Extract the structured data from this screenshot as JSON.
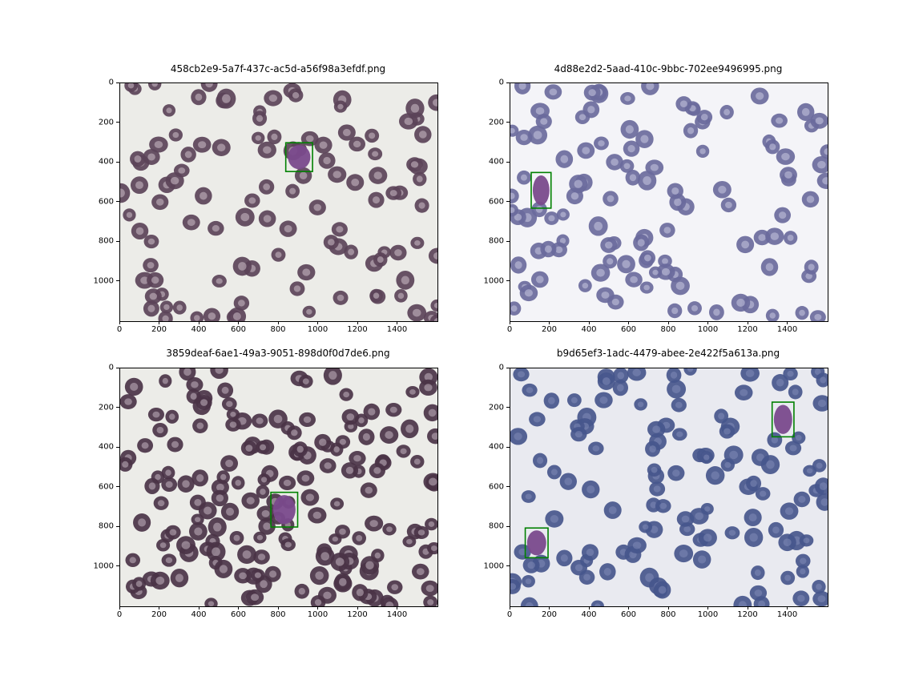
{
  "figure": {
    "panels": [
      {
        "title": "458cb2e9-5a7f-437c-ac5d-a56f98a3efdf.png",
        "image_desc": "thin blood smear, pale grey background, dark purple red cells",
        "palette": {
          "bg": "#ecece8",
          "cell": "#5b4358",
          "cell_center": "#cdbfc8"
        },
        "boxes": [
          {
            "x0": 835,
            "y0": 300,
            "x1": 970,
            "y1": 445,
            "color": "#008000"
          }
        ],
        "xticks": [
          "0",
          "200",
          "400",
          "600",
          "800",
          "1000",
          "1200",
          "1400"
        ],
        "yticks": [
          "0",
          "200",
          "400",
          "600",
          "800",
          "1000"
        ]
      },
      {
        "title": "4d88e2d2-5aad-410c-9bbc-702ee9496995.png",
        "image_desc": "thin blood smear, white background, blue-violet red cells",
        "palette": {
          "bg": "#f4f4f8",
          "cell": "#6a6a9c",
          "cell_center": "#c9c9e0"
        },
        "boxes": [
          {
            "x0": 105,
            "y0": 450,
            "x1": 205,
            "y1": 630,
            "color": "#008000"
          }
        ],
        "xticks": [
          "0",
          "200",
          "400",
          "600",
          "800",
          "1000",
          "1200",
          "1400"
        ],
        "yticks": [
          "0",
          "200",
          "400",
          "600",
          "800",
          "1000"
        ]
      },
      {
        "title": "3859deaf-6ae1-49a3-9051-898d0f0d7de6.png",
        "image_desc": "dense thin blood smear, light background, dark purple red cells",
        "palette": {
          "bg": "#ecece8",
          "cell": "#4a3346",
          "cell_center": "#c2b4bf"
        },
        "boxes": [
          {
            "x0": 760,
            "y0": 625,
            "x1": 895,
            "y1": 800,
            "color": "#008000"
          }
        ],
        "xticks": [
          "0",
          "200",
          "400",
          "600",
          "800",
          "1000",
          "1200",
          "1400"
        ],
        "yticks": [
          "0",
          "200",
          "400",
          "600",
          "800",
          "1000"
        ]
      },
      {
        "title": "b9d65ef3-1adc-4479-abee-2e422f5a613a.png",
        "image_desc": "thin blood smear, light grey-blue background, crenated blue cells",
        "palette": {
          "bg": "#e9eaf0",
          "cell": "#47568c",
          "cell_center": "#7f8bb7"
        },
        "boxes": [
          {
            "x0": 1320,
            "y0": 170,
            "x1": 1430,
            "y1": 345,
            "color": "#008000"
          },
          {
            "x0": 75,
            "y0": 805,
            "x1": 190,
            "y1": 955,
            "color": "#008000"
          }
        ],
        "xticks": [
          "0",
          "200",
          "400",
          "600",
          "800",
          "1000",
          "1200",
          "1400"
        ],
        "yticks": [
          "0",
          "200",
          "400",
          "600",
          "800",
          "1000"
        ]
      }
    ],
    "image_extent": {
      "width": 1600,
      "height": 1200
    }
  }
}
